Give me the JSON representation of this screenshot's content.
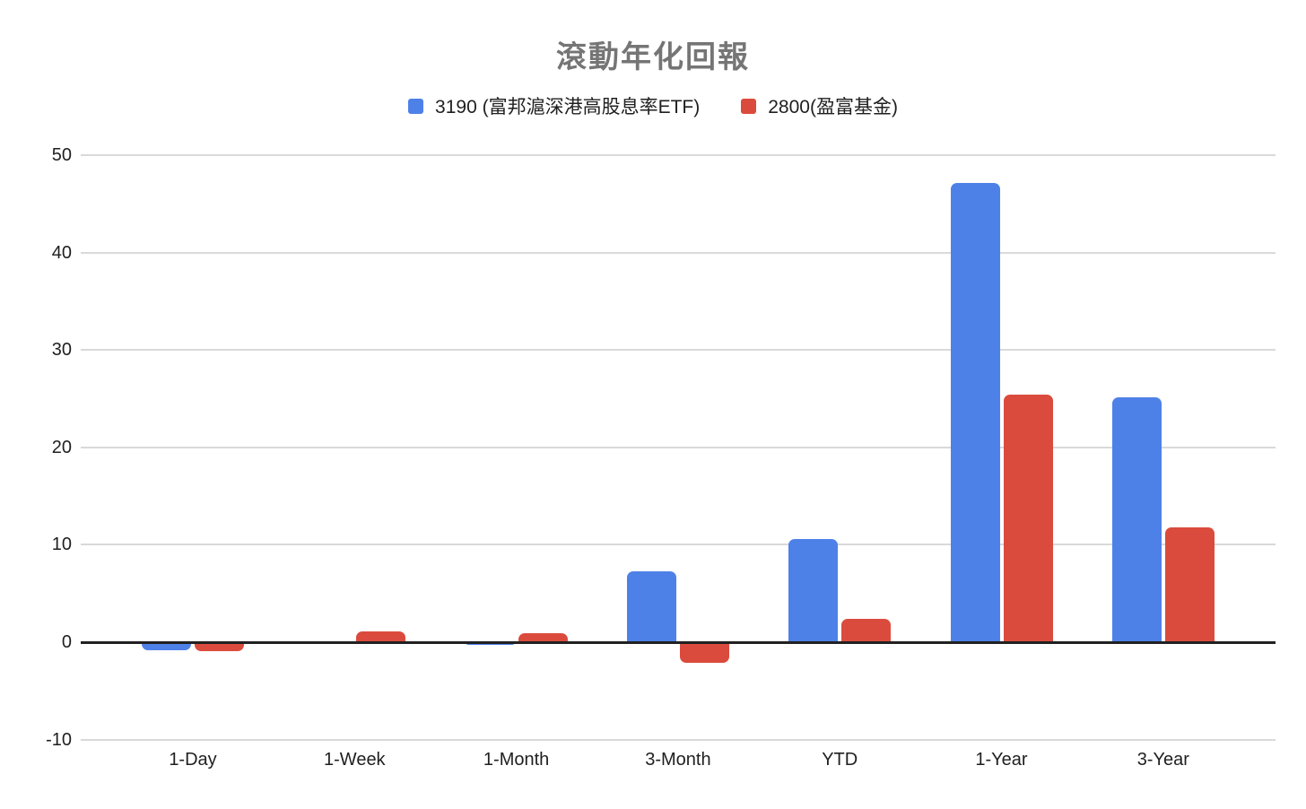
{
  "chart_data": {
    "type": "bar",
    "title": "滾動年化回報",
    "title_color": "#757575",
    "categories": [
      "1-Day",
      "1-Week",
      "1-Month",
      "3-Month",
      "YTD",
      "1-Year",
      "3-Year"
    ],
    "series": [
      {
        "name": "3190 (富邦滬深港高股息率ETF)",
        "color": "#4e81e8",
        "values": [
          -0.8,
          -0.2,
          -0.3,
          7.3,
          10.6,
          47.1,
          25.1
        ]
      },
      {
        "name": "2800(盈富基金)",
        "color": "#db4b3d",
        "values": [
          -0.9,
          1.1,
          0.9,
          -2.1,
          2.4,
          25.4,
          11.8
        ]
      }
    ],
    "xlabel": "",
    "ylabel": "",
    "ylim": [
      -10,
      50
    ],
    "yticks": [
      50,
      40,
      30,
      20,
      10,
      0,
      -10
    ],
    "grid": true,
    "legend_position": "top",
    "gridline_color": "#d9d9d9",
    "axis_color": "#212121",
    "background_color": "#ffffff"
  }
}
